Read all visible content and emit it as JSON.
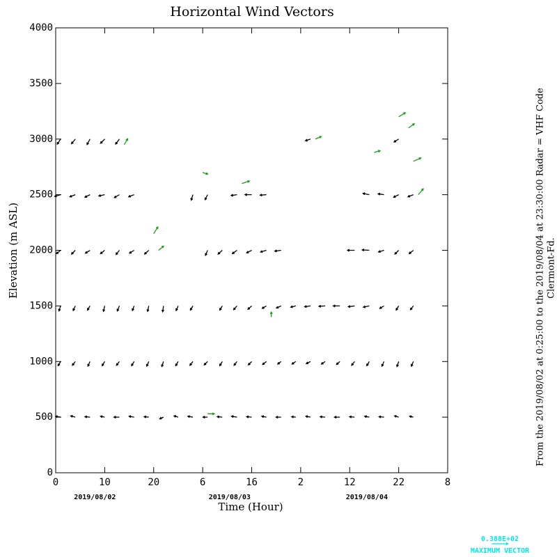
{
  "chart_data": {
    "type": "vector",
    "title": "Horizontal Wind Vectors",
    "x_label": "Time (Hour)",
    "y_label": "Elevation (m ASL)",
    "xlim": [
      0,
      80
    ],
    "ylim": [
      0,
      4000
    ],
    "xticks": [
      0,
      10,
      20,
      {
        "value": 30,
        "label": "6"
      },
      {
        "value": 40,
        "label": "16"
      },
      {
        "value": 50,
        "label": "2"
      },
      {
        "value": 60,
        "label": "12"
      },
      {
        "value": 70,
        "label": "22"
      },
      {
        "value": 80,
        "label": "8"
      }
    ],
    "yticks": [
      0,
      500,
      1000,
      1500,
      2000,
      2500,
      3000,
      3500,
      4000
    ],
    "date_labels": {
      "x": [
        8,
        35.5,
        63.5
      ],
      "labels": [
        "2019/08/02",
        "2019/08/03",
        "2019/08/04"
      ]
    },
    "side_text": [
      "From the 2019/08/02 at  0:25:00 to the 2019/08/04 at 23:30:00 Radar = VHF Code",
      "Clermont-Fd."
    ],
    "max_vector": {
      "value": 38.8,
      "label": "0.388E+02",
      "title": "MAXIMUM VECTOR",
      "color": "#00e5e5"
    },
    "vectors": [
      {
        "color": "#000000",
        "x": [
          1,
          1,
          1,
          1,
          1,
          1,
          4,
          4,
          4,
          4,
          4,
          4,
          7,
          7,
          7,
          7,
          7,
          7,
          10,
          10,
          10,
          10,
          10,
          10,
          13,
          13,
          13,
          13,
          13,
          13,
          16,
          16,
          16,
          16,
          16,
          19,
          19,
          19,
          19,
          22,
          22,
          22,
          25,
          25,
          25,
          28,
          28,
          28,
          28,
          31,
          31,
          31,
          31,
          34,
          34,
          34,
          34,
          37,
          37,
          37,
          37,
          37,
          40,
          40,
          40,
          40,
          40,
          43,
          43,
          43,
          43,
          43,
          46,
          46,
          46,
          46,
          49,
          49,
          49,
          52,
          52,
          52,
          52,
          55,
          55,
          55,
          58,
          58,
          58,
          61,
          61,
          61,
          61,
          64,
          64,
          64,
          64,
          64,
          67,
          67,
          67,
          67,
          67,
          70,
          70,
          70,
          70,
          70,
          70,
          73,
          73,
          73,
          73,
          73
        ],
        "y": [
          500,
          1000,
          1500,
          2000,
          2500,
          3000,
          500,
          1000,
          1500,
          2000,
          2500,
          3000,
          500,
          1000,
          1500,
          2000,
          2500,
          3000,
          500,
          1000,
          1500,
          2000,
          2500,
          3000,
          500,
          1000,
          1500,
          2000,
          2500,
          3000,
          500,
          1000,
          1500,
          2000,
          2500,
          500,
          1000,
          1500,
          2000,
          500,
          1000,
          1500,
          500,
          1000,
          1500,
          500,
          1000,
          1500,
          2500,
          500,
          1000,
          2000,
          2500,
          500,
          1000,
          1500,
          2000,
          500,
          1000,
          1500,
          2000,
          2500,
          500,
          1000,
          1500,
          2000,
          2500,
          500,
          1000,
          1500,
          2000,
          2500,
          500,
          1000,
          1500,
          2000,
          500,
          1000,
          1500,
          500,
          1000,
          1500,
          3000,
          500,
          1000,
          1500,
          500,
          1000,
          1500,
          500,
          1000,
          1500,
          2000,
          500,
          1000,
          1500,
          2000,
          2500,
          500,
          1000,
          1500,
          2000,
          2500,
          500,
          1000,
          1500,
          2000,
          2500,
          3000,
          500,
          1000,
          1500,
          2000,
          2500
        ],
        "u": [
          -12,
          -6,
          -4,
          -10,
          -14,
          -8,
          -11,
          -7,
          -5,
          -9,
          -13,
          -9,
          -12,
          -5,
          -6,
          -11,
          -12,
          -7,
          -10,
          -6,
          -3,
          -10,
          -14,
          -10,
          -13,
          -7,
          -5,
          -8,
          -12,
          -9,
          -12,
          -6,
          -4,
          -11,
          -13,
          -11,
          -5,
          -3,
          -10,
          -9,
          -4,
          -2,
          -10,
          -6,
          -5,
          -12,
          -7,
          -6,
          -4,
          -11,
          -8,
          -5,
          -6,
          -12,
          -6,
          -6,
          -10,
          -13,
          -7,
          -8,
          -11,
          -14,
          -12,
          -8,
          -9,
          -12,
          -16,
          -11,
          -9,
          -10,
          -14,
          -15,
          -12,
          -8,
          -11,
          -15,
          -10,
          -9,
          -12,
          -11,
          -10,
          -14,
          -12,
          -12,
          -9,
          -15,
          -13,
          -8,
          -16,
          -12,
          -7,
          -15,
          -17,
          -11,
          -6,
          -14,
          -17,
          -15,
          -12,
          -5,
          -10,
          -13,
          -14,
          -10,
          -4,
          -6,
          -9,
          -12,
          -11,
          -9,
          -5,
          -7,
          -10,
          -13
        ],
        "v": [
          2,
          -10,
          -12,
          -8,
          -4,
          -12,
          3,
          -9,
          -11,
          -9,
          -5,
          -11,
          1,
          -11,
          -10,
          -7,
          -6,
          -13,
          2,
          -10,
          -13,
          -8,
          -3,
          -10,
          0,
          -9,
          -12,
          -10,
          -7,
          -12,
          2,
          -10,
          -11,
          -7,
          -5,
          1,
          -11,
          -13,
          -9,
          -4,
          -12,
          -14,
          3,
          -10,
          -11,
          2,
          -9,
          -10,
          -13,
          0,
          -8,
          -12,
          -12,
          1,
          -10,
          -10,
          -9,
          2,
          -9,
          -9,
          -8,
          -2,
          1,
          -8,
          -8,
          -6,
          0,
          2,
          -7,
          -6,
          -4,
          -1,
          0,
          -6,
          -5,
          -2,
          1,
          -6,
          -3,
          2,
          -5,
          -2,
          -4,
          1,
          -6,
          -1,
          0,
          -7,
          0,
          1,
          -9,
          -2,
          0,
          2,
          -10,
          -3,
          1,
          3,
          1,
          -11,
          -6,
          -4,
          2,
          3,
          -12,
          -10,
          -9,
          -6,
          -7,
          2,
          -11,
          -9,
          -8,
          -5
        ]
      },
      {
        "color": "#1a9e1a",
        "x": [
          14,
          20,
          21,
          38,
          53,
          70,
          72,
          73,
          74,
          30,
          31,
          65,
          44
        ],
        "y": [
          2950,
          2150,
          2000,
          2600,
          3000,
          3200,
          3100,
          2800,
          2500,
          2700,
          530,
          2880,
          1400
        ],
        "u": [
          8,
          10,
          12,
          18,
          14,
          16,
          14,
          18,
          12,
          12,
          16,
          14,
          0
        ],
        "v": [
          14,
          16,
          10,
          6,
          6,
          10,
          10,
          8,
          14,
          -4,
          0,
          4,
          12
        ]
      }
    ]
  }
}
